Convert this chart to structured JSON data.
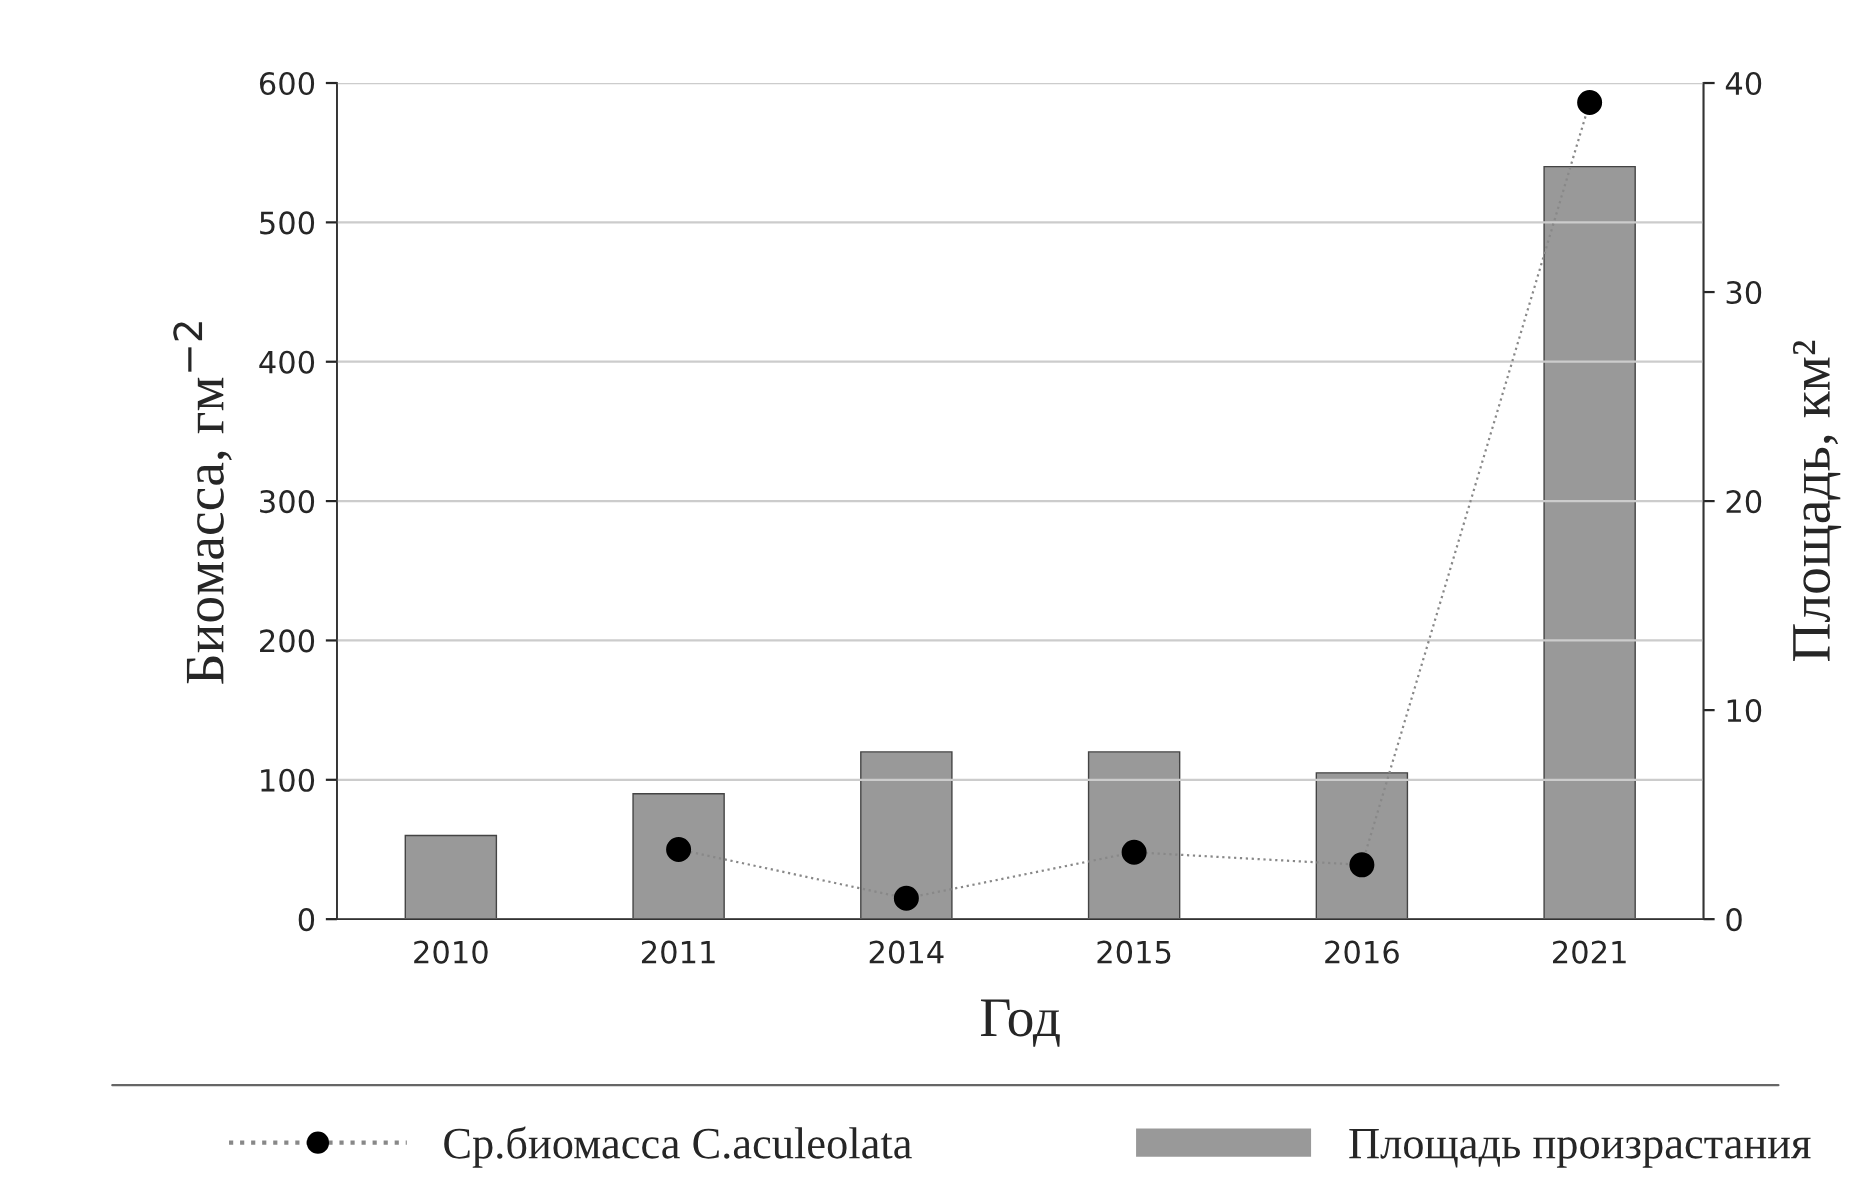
{
  "chart_data": {
    "type": "bar",
    "xlabel": "Год",
    "ylabel": "Биомасса, гм$^{−2}$",
    "y2label": "Площадь, км²",
    "categories": [
      "2010",
      "2011",
      "2014",
      "2015",
      "2016",
      "2021"
    ],
    "series": [
      {
        "name": "Ср.биомасса C.aculeolata",
        "type": "line",
        "color": "#000000",
        "values": [
          null,
          50,
          15,
          48,
          39,
          586
        ],
        "marker": "circle",
        "line_style": "dotted"
      },
      {
        "name": "Площадь произрастания",
        "axis": "y2",
        "color": "#999999",
        "values": [
          4,
          6,
          8,
          8,
          7,
          36
        ]
      }
    ],
    "ylim": [
      0,
      600
    ],
    "yticks": [
      0,
      100,
      200,
      300,
      400,
      500,
      600
    ],
    "y2lim": [
      0,
      40
    ],
    "y2ticks": [
      0,
      10,
      20,
      30,
      40
    ],
    "grid": "y",
    "legend": "bottom"
  }
}
